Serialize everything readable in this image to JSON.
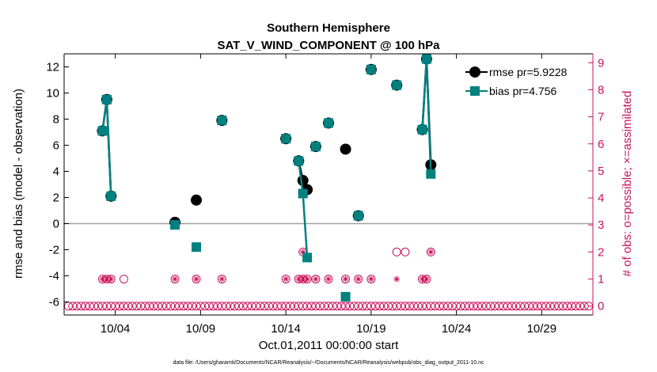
{
  "chart_data": {
    "type": "scatter",
    "title": "Southern Hemisphere",
    "subtitle": "SAT_V_WIND_COMPONENT @ 100 hPa",
    "xlabel": "Oct.01,2011 00:00:00 start",
    "ylabel": "rmse and bias (model - observation)",
    "y2label": "# of obs: o=possible; ×=assimilated",
    "footnote": "data file: /Users/gharamti/Documents/NCAR/Reanalysis/~/Documents/NCAR/Reanalysis/webpub/obs_diag_output_2011-10.nc",
    "xlim": [
      0.5,
      31.5
    ],
    "ylim": [
      -7,
      13
    ],
    "y2lim": [
      -0.33,
      9.33
    ],
    "x_ticks": [
      {
        "x": 3.5,
        "label": "10/04"
      },
      {
        "x": 8.5,
        "label": "10/09"
      },
      {
        "x": 13.5,
        "label": "10/14"
      },
      {
        "x": 18.5,
        "label": "10/19"
      },
      {
        "x": 23.5,
        "label": "10/24"
      },
      {
        "x": 28.5,
        "label": "10/29"
      }
    ],
    "y_ticks": [
      -6,
      -4,
      -2,
      0,
      2,
      4,
      6,
      8,
      10,
      12
    ],
    "y2_ticks": [
      0,
      1,
      2,
      3,
      4,
      5,
      6,
      7,
      8,
      9
    ],
    "colors": {
      "rmse": "#000000",
      "bias": "#00807f",
      "obs": "#c8135b",
      "zero_line": "#a0a0a0"
    },
    "series": [
      {
        "name": "rmse pr=5.9228",
        "marker": "circle",
        "points": [
          [
            2.75,
            7.1
          ],
          [
            3.0,
            9.5
          ],
          [
            3.25,
            2.1
          ],
          [
            7.0,
            0.1
          ],
          [
            8.25,
            1.8
          ],
          [
            9.75,
            7.9
          ],
          [
            13.5,
            6.5
          ],
          [
            14.25,
            4.8
          ],
          [
            14.5,
            3.3
          ],
          [
            14.75,
            2.6
          ],
          [
            15.25,
            5.9
          ],
          [
            16.0,
            7.7
          ],
          [
            17.0,
            5.7
          ],
          [
            17.75,
            0.6
          ],
          [
            18.5,
            11.8
          ],
          [
            20.0,
            10.6
          ],
          [
            21.5,
            7.2
          ],
          [
            21.75,
            12.6
          ],
          [
            22.0,
            4.5
          ]
        ],
        "segments": [
          [
            0,
            2
          ],
          [
            7,
            9
          ],
          [
            16,
            18
          ]
        ]
      },
      {
        "name": "bias pr=4.756",
        "marker": "square",
        "points": [
          [
            2.75,
            7.1
          ],
          [
            3.0,
            9.5
          ],
          [
            3.25,
            2.1
          ],
          [
            7.0,
            -0.1
          ],
          [
            8.25,
            -1.8
          ],
          [
            9.75,
            7.9
          ],
          [
            13.5,
            6.5
          ],
          [
            14.25,
            4.8
          ],
          [
            14.5,
            2.3
          ],
          [
            14.75,
            -2.6
          ],
          [
            15.25,
            5.9
          ],
          [
            16.0,
            7.7
          ],
          [
            17.0,
            -5.6
          ],
          [
            17.75,
            0.6
          ],
          [
            18.5,
            11.8
          ],
          [
            20.0,
            10.6
          ],
          [
            21.5,
            7.2
          ],
          [
            21.75,
            12.6
          ],
          [
            22.0,
            3.8
          ]
        ],
        "segments": [
          [
            0,
            2
          ],
          [
            7,
            9
          ],
          [
            16,
            18
          ]
        ]
      }
    ],
    "obs_possible": [
      [
        2.75,
        1
      ],
      [
        3.0,
        1
      ],
      [
        3.25,
        1
      ],
      [
        4.0,
        1
      ],
      [
        7.0,
        1
      ],
      [
        8.25,
        1
      ],
      [
        9.75,
        1
      ],
      [
        13.5,
        1
      ],
      [
        14.25,
        1
      ],
      [
        14.5,
        2
      ],
      [
        14.5,
        1
      ],
      [
        14.75,
        1
      ],
      [
        15.25,
        1
      ],
      [
        16.0,
        1
      ],
      [
        17.0,
        1
      ],
      [
        17.75,
        1
      ],
      [
        18.5,
        1
      ],
      [
        20.0,
        2
      ],
      [
        20.5,
        2
      ],
      [
        21.5,
        1
      ],
      [
        21.75,
        1
      ],
      [
        22.0,
        2
      ]
    ],
    "obs_assimilated": [
      [
        2.75,
        1
      ],
      [
        3.0,
        1
      ],
      [
        3.25,
        1
      ],
      [
        7.0,
        1
      ],
      [
        8.25,
        1
      ],
      [
        9.75,
        1
      ],
      [
        13.5,
        1
      ],
      [
        14.25,
        1
      ],
      [
        14.5,
        2
      ],
      [
        14.5,
        1
      ],
      [
        14.75,
        1
      ],
      [
        15.25,
        1
      ],
      [
        16.0,
        1
      ],
      [
        17.0,
        1
      ],
      [
        17.75,
        1
      ],
      [
        18.5,
        1
      ],
      [
        20.0,
        1
      ],
      [
        21.5,
        1
      ],
      [
        21.75,
        1
      ],
      [
        22.0,
        2
      ]
    ],
    "obs_zero_range": [
      0.5,
      31.5,
      0.25
    ]
  }
}
